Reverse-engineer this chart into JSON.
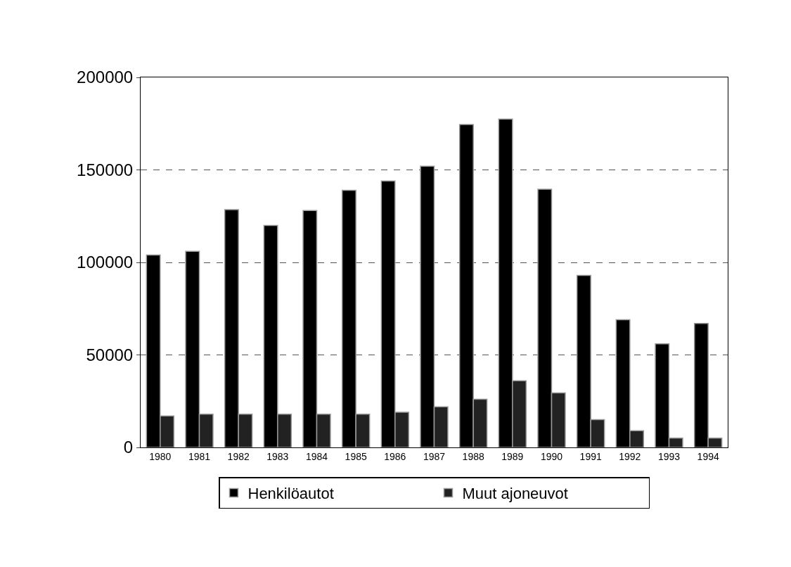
{
  "chart_data": {
    "type": "bar",
    "categories": [
      "1980",
      "1981",
      "1982",
      "1983",
      "1984",
      "1985",
      "1986",
      "1987",
      "1988",
      "1989",
      "1990",
      "1991",
      "1992",
      "1993",
      "1994"
    ],
    "series": [
      {
        "name": "Henkilöautot",
        "color": "#000000",
        "values": [
          104000,
          106000,
          128500,
          120000,
          128000,
          139000,
          144000,
          152000,
          174500,
          177500,
          139500,
          93000,
          69000,
          56000,
          67000
        ]
      },
      {
        "name": "Muut ajoneuvot",
        "color": "#222222",
        "values": [
          17000,
          18000,
          18000,
          18000,
          18000,
          18000,
          19000,
          22000,
          26000,
          36000,
          29500,
          15000,
          9000,
          5000,
          5000
        ]
      }
    ],
    "ylim": [
      0,
      200000
    ],
    "yticks": [
      0,
      50000,
      100000,
      150000,
      200000
    ],
    "grid": "y",
    "legend": "bottom"
  }
}
